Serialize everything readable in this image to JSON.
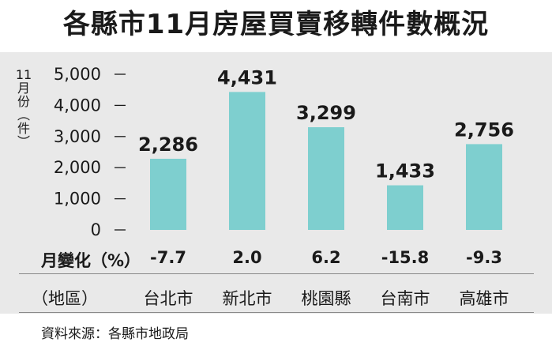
{
  "title": "各縣市11月房屋買賣移轉件數概況",
  "ylabel_chars": [
    "11",
    "月",
    "份",
    "︵",
    "件",
    "︶"
  ],
  "change_row_label": "月變化（%）",
  "region_row_label": "（地區）",
  "source": "資料來源：各縣市地政局",
  "colors": {
    "bar": "#7ecfcf",
    "panel": "#e9e9e9"
  },
  "chart_data": {
    "type": "bar",
    "categories": [
      "台北市",
      "新北市",
      "桃園縣",
      "台南市",
      "高雄市"
    ],
    "values": [
      2286,
      4431,
      3299,
      1433,
      2756
    ],
    "value_labels": [
      "2,286",
      "4,431",
      "3,299",
      "1,433",
      "2,756"
    ],
    "monthly_change_pct": [
      "-7.7",
      "2.0",
      "6.2",
      "-15.8",
      "-9.3"
    ],
    "title": "各縣市11月房屋買賣移轉件數概況",
    "ylabel": "11月份（件）",
    "ylim": [
      0,
      5000
    ],
    "yticks": [
      0,
      1000,
      2000,
      3000,
      4000,
      5000
    ],
    "ytick_labels": [
      "0",
      "1,000",
      "2,000",
      "3,000",
      "4,000",
      "5,000"
    ],
    "grid": false,
    "legend": "none"
  }
}
